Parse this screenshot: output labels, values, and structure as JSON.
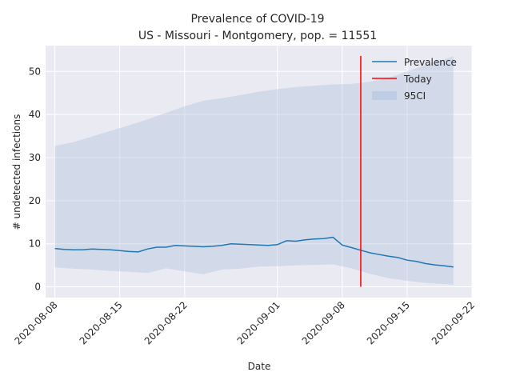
{
  "chart_data": {
    "type": "line",
    "title": "Prevalence of COVID-19",
    "subtitle": "US - Missouri - Montgomery, pop. = 11551",
    "xlabel": "Date",
    "ylabel": "# undetected infections",
    "xlim": [
      "2020-08-07",
      "2020-09-22"
    ],
    "ylim": [
      -2.5,
      56
    ],
    "x_ticks": [
      "2020-08-08",
      "2020-08-15",
      "2020-08-22",
      "2020-09-01",
      "2020-09-08",
      "2020-09-15",
      "2020-09-22"
    ],
    "y_ticks": [
      0,
      10,
      20,
      30,
      40,
      50
    ],
    "grid": true,
    "legend_position": "top-right",
    "today": "2020-09-10",
    "colors": {
      "prevalence": "#1f77b4",
      "today": "#ff0000",
      "ci_band": "#b0c4de",
      "plot_background": "#eaeaf2",
      "grid": "#ffffff"
    },
    "legend": [
      {
        "label": "Prevalence",
        "kind": "line",
        "color": "#1f77b4"
      },
      {
        "label": "Today",
        "kind": "line",
        "color": "#ff0000"
      },
      {
        "label": "95CI",
        "kind": "patch",
        "color": "#b0c4de"
      }
    ],
    "series": [
      {
        "name": "Prevalence",
        "x": [
          "2020-08-08",
          "2020-08-09",
          "2020-08-10",
          "2020-08-11",
          "2020-08-12",
          "2020-08-13",
          "2020-08-14",
          "2020-08-15",
          "2020-08-16",
          "2020-08-17",
          "2020-08-18",
          "2020-08-19",
          "2020-08-20",
          "2020-08-21",
          "2020-08-22",
          "2020-08-23",
          "2020-08-24",
          "2020-08-25",
          "2020-08-26",
          "2020-08-27",
          "2020-08-28",
          "2020-08-29",
          "2020-08-30",
          "2020-08-31",
          "2020-09-01",
          "2020-09-02",
          "2020-09-03",
          "2020-09-04",
          "2020-09-05",
          "2020-09-06",
          "2020-09-07",
          "2020-09-08",
          "2020-09-09",
          "2020-09-10",
          "2020-09-11",
          "2020-09-12",
          "2020-09-13",
          "2020-09-14",
          "2020-09-15",
          "2020-09-16",
          "2020-09-17",
          "2020-09-18",
          "2020-09-19",
          "2020-09-20"
        ],
        "y": [
          8.9,
          8.7,
          8.6,
          8.6,
          8.8,
          8.7,
          8.6,
          8.4,
          8.2,
          8.1,
          8.8,
          9.2,
          9.2,
          9.6,
          9.5,
          9.4,
          9.3,
          9.4,
          9.6,
          10.0,
          9.9,
          9.8,
          9.7,
          9.6,
          9.8,
          10.7,
          10.6,
          10.9,
          11.1,
          11.2,
          11.5,
          9.7,
          9.1,
          8.5,
          7.9,
          7.5,
          7.1,
          6.8,
          6.2,
          5.9,
          5.4,
          5.1,
          4.9,
          4.6
        ]
      }
    ],
    "ci_band": {
      "name": "95CI",
      "x": [
        "2020-08-08",
        "2020-08-10",
        "2020-08-12",
        "2020-08-14",
        "2020-08-16",
        "2020-08-18",
        "2020-08-20",
        "2020-08-22",
        "2020-08-24",
        "2020-08-26",
        "2020-08-28",
        "2020-08-30",
        "2020-09-01",
        "2020-09-03",
        "2020-09-05",
        "2020-09-07",
        "2020-09-09",
        "2020-09-11",
        "2020-09-13",
        "2020-09-15",
        "2020-09-17",
        "2020-09-20"
      ],
      "upper": [
        32.7,
        33.6,
        34.9,
        36.2,
        37.5,
        38.9,
        40.4,
        41.9,
        43.2,
        43.8,
        44.5,
        45.3,
        45.9,
        46.4,
        46.7,
        47.0,
        47.1,
        47.6,
        48.5,
        50.0,
        51.5,
        53.5
      ],
      "lower": [
        4.5,
        4.2,
        4.0,
        3.7,
        3.5,
        3.2,
        4.3,
        3.6,
        2.9,
        4.0,
        4.2,
        4.7,
        4.8,
        5.0,
        5.1,
        5.2,
        4.3,
        3.0,
        2.0,
        1.4,
        0.9,
        0.5
      ]
    }
  }
}
